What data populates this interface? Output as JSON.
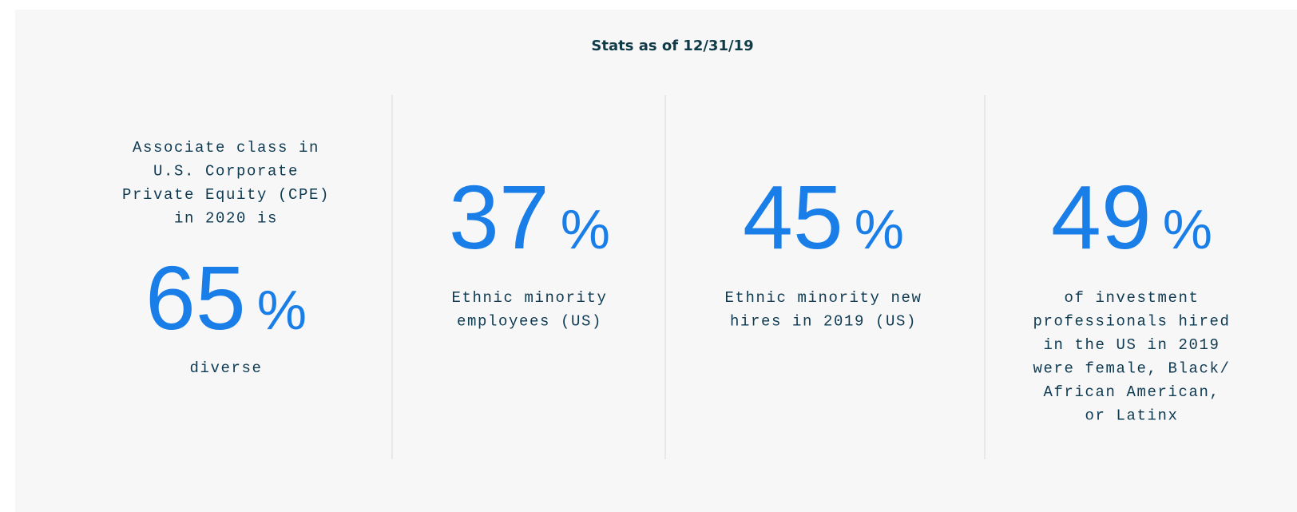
{
  "title": "Stats as of 12/31/19",
  "stats": [
    {
      "intro": [
        "Associate class in",
        "U.S. Corporate",
        "Private Equity (CPE)",
        "in 2020 is"
      ],
      "value": 65,
      "unit": "%",
      "caption": [
        "diverse"
      ]
    },
    {
      "value": 37,
      "unit": "%",
      "caption": [
        "Ethnic minority",
        "employees (US)"
      ]
    },
    {
      "value": 45,
      "unit": "%",
      "caption": [
        "Ethnic minority new",
        "hires in 2019 (US)"
      ]
    },
    {
      "value": 49,
      "unit": "%",
      "caption": [
        "of investment",
        "professionals hired",
        "in the US in 2019",
        "were female, Black/",
        "African American,",
        "or Latinx"
      ]
    }
  ]
}
